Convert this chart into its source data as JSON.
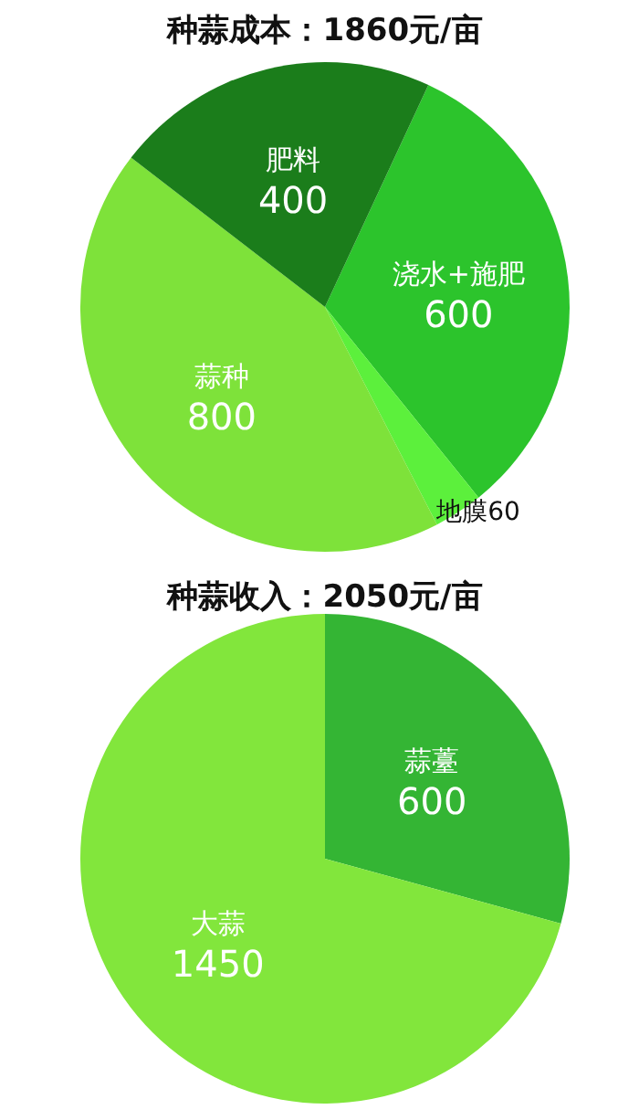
{
  "chart_data": [
    {
      "type": "pie",
      "title": "种蒜成本：1860元/亩",
      "categories": [
        "浇水+施肥",
        "地膜",
        "蒜种",
        "肥料"
      ],
      "values": [
        600,
        60,
        800,
        400
      ],
      "colors": [
        "#2cc42c",
        "#5cf03c",
        "#7ee23a",
        "#1b7d1b"
      ],
      "data_labels": true
    },
    {
      "type": "pie",
      "title": "种蒜收入：2050元/亩",
      "categories": [
        "蒜薹",
        "大蒜"
      ],
      "values": [
        600,
        1450
      ],
      "colors": [
        "#34b534",
        "#82e63c"
      ],
      "data_labels": true
    }
  ]
}
